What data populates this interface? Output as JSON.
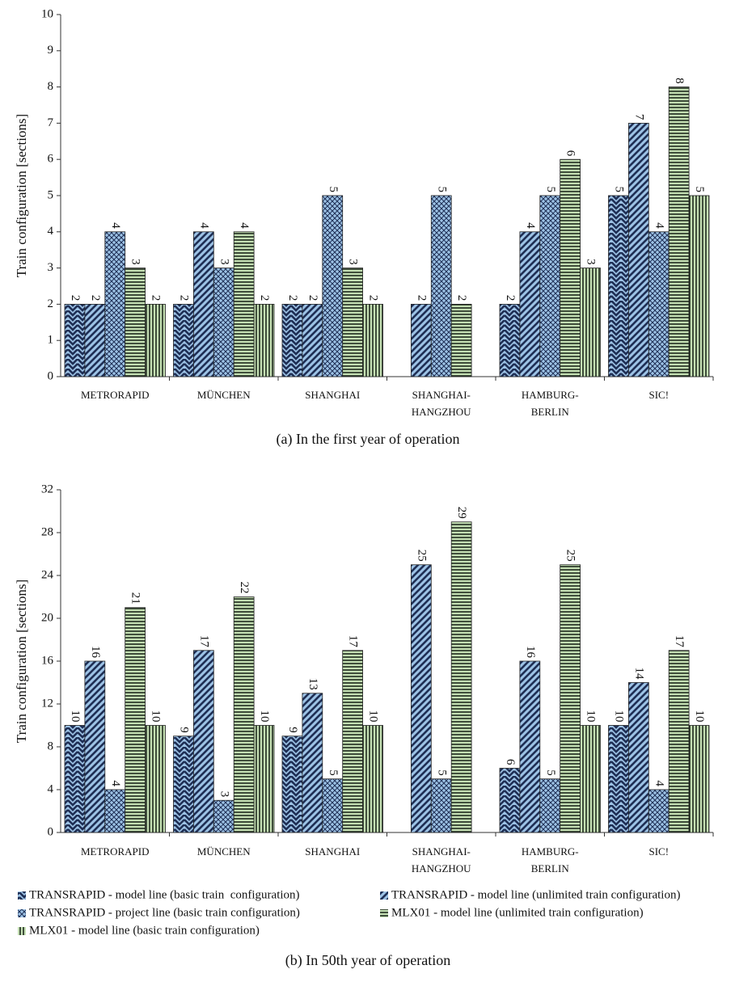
{
  "chart_data": [
    {
      "type": "bar",
      "ylabel": "Train configuration [sections]",
      "caption": "(a) In the first year of operation",
      "categories": [
        "METRORAPID",
        "MÜNCHEN",
        "SHANGHAI",
        "SHANGHAI-\nHANGZHOU",
        "HAMBURG-\nBERLIN",
        "SIC!"
      ],
      "ylim": [
        0,
        10
      ],
      "yticks": [
        0,
        1,
        2,
        3,
        4,
        5,
        6,
        7,
        8,
        9,
        10
      ],
      "series": [
        {
          "hatch": "chevron",
          "color": "#9dc3e6",
          "hatch_color": "#1f2f55",
          "values": [
            2,
            2,
            2,
            null,
            2,
            5
          ]
        },
        {
          "hatch": "diagonal",
          "color": "#9dc3e6",
          "hatch_color": "#1f2f55",
          "values": [
            2,
            4,
            2,
            2,
            4,
            7
          ]
        },
        {
          "hatch": "cross",
          "color": "#9dc3e6",
          "hatch_color": "#1f2f55",
          "values": [
            4,
            3,
            5,
            5,
            5,
            4
          ]
        },
        {
          "hatch": "horizontal",
          "color": "#c5e0b4",
          "hatch_color": "#1e2a1e",
          "values": [
            3,
            4,
            3,
            2,
            6,
            8
          ]
        },
        {
          "hatch": "vertical",
          "color": "#c5e0b4",
          "hatch_color": "#1e2a1e",
          "values": [
            2,
            2,
            2,
            null,
            3,
            5
          ]
        }
      ]
    },
    {
      "type": "bar",
      "ylabel": "Train configuration [sections]",
      "caption": "(b) In 50th year of operation",
      "categories": [
        "METRORAPID",
        "MÜNCHEN",
        "SHANGHAI",
        "SHANGHAI-\nHANGZHOU",
        "HAMBURG-\nBERLIN",
        "SIC!"
      ],
      "ylim": [
        0,
        32
      ],
      "yticks": [
        0,
        4,
        8,
        12,
        16,
        20,
        24,
        28,
        32
      ],
      "legend": "bottom",
      "series": [
        {
          "name": "TRANSRAPID - model line (basic train  configuration)",
          "hatch": "chevron",
          "color": "#9dc3e6",
          "hatch_color": "#1f2f55",
          "values": [
            10,
            9,
            9,
            null,
            6,
            10
          ]
        },
        {
          "name": "TRANSRAPID - model line (unlimited train configuration)",
          "hatch": "diagonal",
          "color": "#9dc3e6",
          "hatch_color": "#1f2f55",
          "values": [
            16,
            17,
            13,
            25,
            16,
            14
          ]
        },
        {
          "name": "TRANSRAPID - project line (basic train configuration)",
          "hatch": "cross",
          "color": "#9dc3e6",
          "hatch_color": "#1f2f55",
          "values": [
            4,
            3,
            5,
            5,
            5,
            4
          ]
        },
        {
          "name": "MLX01 - model line (unlimited train configuration)",
          "hatch": "horizontal",
          "color": "#c5e0b4",
          "hatch_color": "#1e2a1e",
          "values": [
            21,
            22,
            17,
            29,
            25,
            17
          ]
        },
        {
          "name": "MLX01 - model line (basic train configuration)",
          "hatch": "vertical",
          "color": "#c5e0b4",
          "hatch_color": "#1e2a1e",
          "values": [
            10,
            10,
            10,
            null,
            10,
            10
          ]
        }
      ]
    }
  ]
}
